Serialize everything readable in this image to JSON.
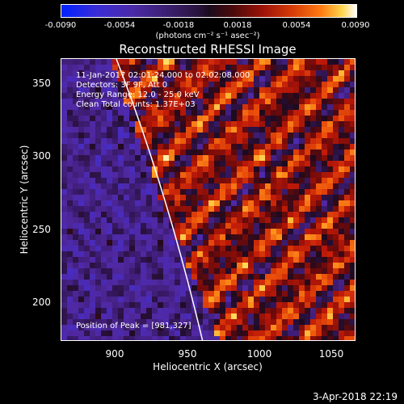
{
  "colorbar": {
    "ticks": [
      "-0.0090",
      "-0.0054",
      "-0.0018",
      "0.0018",
      "0.0054",
      "0.0090"
    ],
    "unit": "(photons cm⁻² s⁻¹ asec⁻²)"
  },
  "title": "Reconstructed RHESSI Image",
  "info": {
    "line1": "11-Jan-2017 02:01:24.000 to 02:02:08.000",
    "line2": "Detectors: 3F 9F, Att 0",
    "line3": "Energy Range: 12.0 - 25.0 keV",
    "line4": "Clean     Total counts: 1.37E+03",
    "peak": "Position of Peak = [981,327]"
  },
  "axes": {
    "xlabel": "Heliocentric X (arcsec)",
    "ylabel": "Heliocentric Y (arcsec)",
    "xticks": [
      "900",
      "950",
      "1000",
      "1050"
    ],
    "yticks": [
      "350",
      "300",
      "250",
      "200"
    ]
  },
  "footer": {
    "date": "3-Apr-2018 22:19"
  }
}
